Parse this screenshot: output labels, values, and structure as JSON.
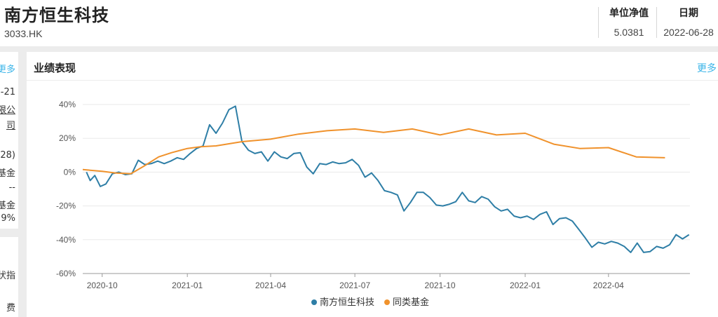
{
  "header": {
    "fund_name": "南方恒生科技",
    "fund_code": "3033.HK",
    "nav_label": "单位净值",
    "nav_value": "5.0381",
    "date_label": "日期",
    "date_value": "2022-06-28"
  },
  "left_panel": {
    "more": "更多",
    "lines": [
      "-21",
      "限公",
      "司",
      "28)",
      "类基金",
      "--",
      "基金",
      "9%"
    ],
    "lines2": [
      "状指",
      "",
      "费"
    ]
  },
  "section": {
    "title": "业绩表现",
    "more": "更多"
  },
  "colors": {
    "fund": "#2e7ea6",
    "peer": "#f0922c",
    "link": "#3ab4e8"
  },
  "chart_data": {
    "type": "line",
    "title": "业绩表现",
    "ylabel": "",
    "xlabel": "",
    "ylim": [
      -60,
      40
    ],
    "yticks": [
      -60,
      -40,
      -20,
      0,
      20,
      40
    ],
    "ytick_labels": [
      "-60%",
      "-40%",
      "-20%",
      "0%",
      "20%",
      "40%"
    ],
    "xlim": [
      "2020-09-10",
      "2022-06-28"
    ],
    "xticks": [
      "2020-10-01",
      "2021-01-01",
      "2021-04-01",
      "2021-07-01",
      "2021-10-01",
      "2022-01-01",
      "2022-04-01"
    ],
    "xtick_labels": [
      "2020-10",
      "2021-01",
      "2021-04",
      "2021-07",
      "2021-10",
      "2022-01",
      "2022-04"
    ],
    "grid": "horizontal",
    "legend_position": "bottom-center",
    "series": [
      {
        "name": "南方恒生科技",
        "color": "#2e7ea6",
        "points": [
          [
            "2020-09-14",
            0
          ],
          [
            "2020-09-18",
            -5
          ],
          [
            "2020-09-23",
            -2
          ],
          [
            "2020-09-29",
            -8.5
          ],
          [
            "2020-10-05",
            -7
          ],
          [
            "2020-10-12",
            -1
          ],
          [
            "2020-10-19",
            0
          ],
          [
            "2020-10-26",
            -1.5
          ],
          [
            "2020-11-02",
            -1
          ],
          [
            "2020-11-09",
            7
          ],
          [
            "2020-11-16",
            4.5
          ],
          [
            "2020-11-23",
            5
          ],
          [
            "2020-11-30",
            6.5
          ],
          [
            "2020-12-07",
            5
          ],
          [
            "2020-12-14",
            6.5
          ],
          [
            "2020-12-21",
            8.5
          ],
          [
            "2020-12-28",
            7.5
          ],
          [
            "2021-01-04",
            11
          ],
          [
            "2021-01-11",
            14
          ],
          [
            "2021-01-18",
            15.5
          ],
          [
            "2021-01-25",
            28
          ],
          [
            "2021-02-01",
            23
          ],
          [
            "2021-02-08",
            29
          ],
          [
            "2021-02-15",
            37
          ],
          [
            "2021-02-22",
            39
          ],
          [
            "2021-03-01",
            18
          ],
          [
            "2021-03-08",
            13
          ],
          [
            "2021-03-15",
            11
          ],
          [
            "2021-03-22",
            12
          ],
          [
            "2021-03-29",
            6.5
          ],
          [
            "2021-04-05",
            12
          ],
          [
            "2021-04-12",
            9
          ],
          [
            "2021-04-19",
            8
          ],
          [
            "2021-04-26",
            11
          ],
          [
            "2021-05-03",
            11.5
          ],
          [
            "2021-05-10",
            3
          ],
          [
            "2021-05-17",
            -1
          ],
          [
            "2021-05-24",
            5
          ],
          [
            "2021-05-31",
            4.5
          ],
          [
            "2021-06-07",
            6
          ],
          [
            "2021-06-14",
            5
          ],
          [
            "2021-06-21",
            5.5
          ],
          [
            "2021-06-28",
            7.5
          ],
          [
            "2021-07-05",
            4
          ],
          [
            "2021-07-12",
            -3
          ],
          [
            "2021-07-19",
            -0.5
          ],
          [
            "2021-07-26",
            -5
          ],
          [
            "2021-08-02",
            -11
          ],
          [
            "2021-08-09",
            -12
          ],
          [
            "2021-08-16",
            -13.5
          ],
          [
            "2021-08-23",
            -23
          ],
          [
            "2021-08-30",
            -18
          ],
          [
            "2021-09-06",
            -12
          ],
          [
            "2021-09-13",
            -12
          ],
          [
            "2021-09-20",
            -15
          ],
          [
            "2021-09-27",
            -19.5
          ],
          [
            "2021-10-04",
            -20
          ],
          [
            "2021-10-11",
            -19
          ],
          [
            "2021-10-18",
            -17.5
          ],
          [
            "2021-10-25",
            -12
          ],
          [
            "2021-11-01",
            -17
          ],
          [
            "2021-11-08",
            -18
          ],
          [
            "2021-11-15",
            -14.5
          ],
          [
            "2021-11-22",
            -16
          ],
          [
            "2021-11-29",
            -20.5
          ],
          [
            "2021-12-06",
            -23
          ],
          [
            "2021-12-13",
            -22
          ],
          [
            "2021-12-20",
            -26
          ],
          [
            "2021-12-27",
            -27
          ],
          [
            "2022-01-03",
            -26
          ],
          [
            "2022-01-10",
            -28
          ],
          [
            "2022-01-17",
            -25
          ],
          [
            "2022-01-24",
            -23.5
          ],
          [
            "2022-01-31",
            -31
          ],
          [
            "2022-02-07",
            -27.5
          ],
          [
            "2022-02-14",
            -27
          ],
          [
            "2022-02-21",
            -29
          ],
          [
            "2022-02-28",
            -34
          ],
          [
            "2022-03-07",
            -39
          ],
          [
            "2022-03-14",
            -44.5
          ],
          [
            "2022-03-21",
            -41.5
          ],
          [
            "2022-03-28",
            -42.5
          ],
          [
            "2022-04-04",
            -41
          ],
          [
            "2022-04-11",
            -42
          ],
          [
            "2022-04-18",
            -44
          ],
          [
            "2022-04-25",
            -47.5
          ],
          [
            "2022-05-02",
            -42
          ],
          [
            "2022-05-09",
            -47.5
          ],
          [
            "2022-05-16",
            -47
          ],
          [
            "2022-05-23",
            -44
          ],
          [
            "2022-05-30",
            -45
          ],
          [
            "2022-06-06",
            -43
          ],
          [
            "2022-06-13",
            -37
          ],
          [
            "2022-06-20",
            -39.5
          ],
          [
            "2022-06-27",
            -37
          ]
        ]
      },
      {
        "name": "同类基金",
        "color": "#f0922c",
        "points": [
          [
            "2020-09-10",
            1.5
          ],
          [
            "2020-10-01",
            0.5
          ],
          [
            "2020-10-15",
            -0.5
          ],
          [
            "2020-11-01",
            -1
          ],
          [
            "2020-11-15",
            3.5
          ],
          [
            "2020-12-01",
            9
          ],
          [
            "2020-12-15",
            11.5
          ],
          [
            "2021-01-01",
            14
          ],
          [
            "2021-01-15",
            15
          ],
          [
            "2021-02-01",
            15.5
          ],
          [
            "2021-03-01",
            18
          ],
          [
            "2021-04-01",
            19.5
          ],
          [
            "2021-05-01",
            22.5
          ],
          [
            "2021-06-01",
            24.5
          ],
          [
            "2021-07-01",
            25.5
          ],
          [
            "2021-08-01",
            23.5
          ],
          [
            "2021-09-01",
            25.5
          ],
          [
            "2021-10-01",
            22
          ],
          [
            "2021-11-01",
            25.5
          ],
          [
            "2021-12-01",
            22
          ],
          [
            "2022-01-01",
            23
          ],
          [
            "2022-02-01",
            16.5
          ],
          [
            "2022-03-01",
            14
          ],
          [
            "2022-04-01",
            14.5
          ],
          [
            "2022-05-01",
            9
          ],
          [
            "2022-06-01",
            8.5
          ]
        ]
      }
    ]
  }
}
